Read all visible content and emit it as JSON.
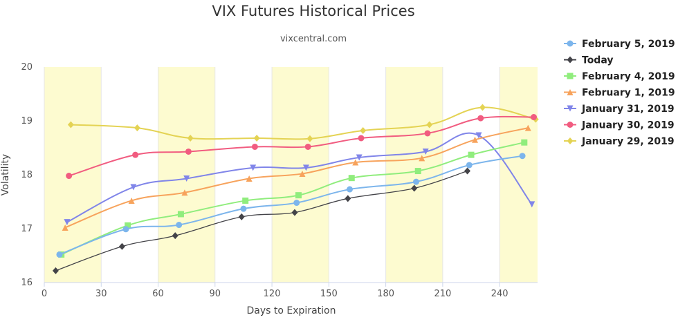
{
  "chart_data": {
    "type": "line",
    "title": "VIX Futures Historical Prices",
    "subtitle": "vixcentral.com",
    "xlabel": "Days to Expiration",
    "ylabel": "Volatility",
    "xlim": [
      0,
      260
    ],
    "ylim": [
      16,
      20
    ],
    "xticks": [
      0,
      30,
      60,
      90,
      120,
      150,
      180,
      210,
      240
    ],
    "yticks": [
      16,
      17,
      18,
      19,
      20
    ],
    "plot_bands_x": [
      [
        0,
        30
      ],
      [
        60,
        90
      ],
      [
        120,
        150
      ],
      [
        180,
        210
      ],
      [
        240,
        260
      ]
    ],
    "band_color": "#fdfbd0",
    "grid": "vertical",
    "legend_position": "right",
    "series": [
      {
        "name": "February 5, 2019",
        "color": "#7cb5ec",
        "marker": "circle",
        "x": [
          8,
          43,
          71,
          105,
          133,
          161,
          196,
          224,
          252
        ],
        "y": [
          16.52,
          16.99,
          17.07,
          17.37,
          17.48,
          17.73,
          17.87,
          18.18,
          18.35
        ]
      },
      {
        "name": "Today",
        "color": "#434348",
        "marker": "diamond",
        "x": [
          6,
          41,
          69,
          104,
          132,
          160,
          195,
          223
        ],
        "y": [
          16.22,
          16.67,
          16.87,
          17.22,
          17.3,
          17.56,
          17.75,
          18.07
        ]
      },
      {
        "name": "February 4, 2019",
        "color": "#90ed7d",
        "marker": "square",
        "x": [
          9,
          44,
          72,
          106,
          134,
          162,
          197,
          225,
          253
        ],
        "y": [
          16.52,
          17.06,
          17.27,
          17.52,
          17.62,
          17.94,
          18.07,
          18.37,
          18.6
        ]
      },
      {
        "name": "February 1, 2019",
        "color": "#f7a35c",
        "marker": "triangle",
        "x": [
          11,
          46,
          74,
          108,
          136,
          164,
          199,
          227,
          255
        ],
        "y": [
          17.02,
          17.52,
          17.67,
          17.93,
          18.02,
          18.23,
          18.31,
          18.65,
          18.87
        ]
      },
      {
        "name": "January 31, 2019",
        "color": "#8085e9",
        "marker": "triangle-down",
        "x": [
          12,
          47,
          75,
          110,
          138,
          166,
          201,
          229,
          257
        ],
        "y": [
          17.12,
          17.77,
          17.93,
          18.13,
          18.13,
          18.32,
          18.43,
          18.73,
          17.45
        ]
      },
      {
        "name": "January 30, 2019",
        "color": "#f15c80",
        "marker": "circle",
        "x": [
          13,
          48,
          76,
          111,
          139,
          167,
          202,
          230,
          258
        ],
        "y": [
          17.98,
          18.37,
          18.43,
          18.52,
          18.52,
          18.68,
          18.77,
          19.05,
          19.07
        ]
      },
      {
        "name": "January 29, 2019",
        "color": "#e4d354",
        "marker": "diamond",
        "x": [
          14,
          49,
          77,
          112,
          140,
          168,
          203,
          231,
          259
        ],
        "y": [
          18.93,
          18.87,
          18.68,
          18.68,
          18.67,
          18.82,
          18.93,
          19.25,
          19.03
        ]
      }
    ]
  }
}
